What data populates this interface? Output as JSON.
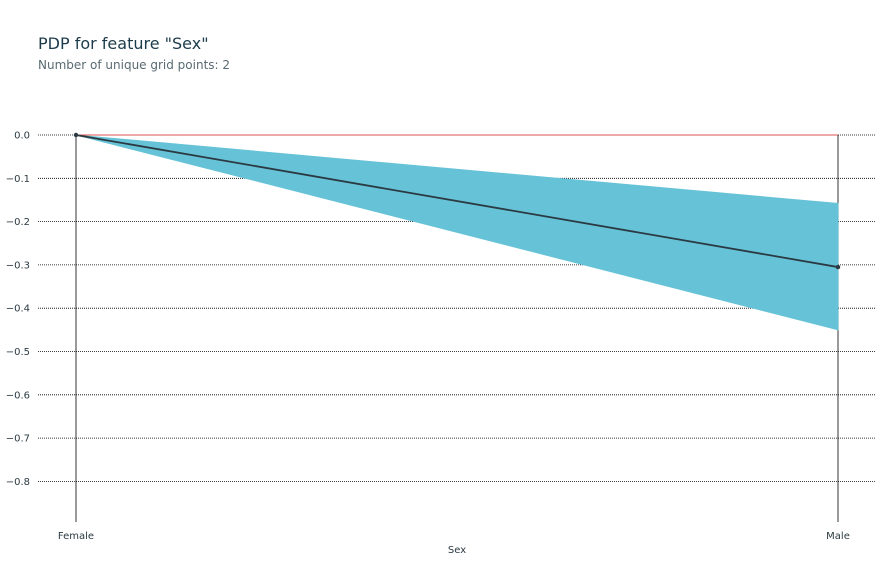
{
  "chart_data": {
    "type": "line",
    "title": "PDP for feature \"Sex\"",
    "subtitle": "Number of unique grid points: 2",
    "xlabel": "Sex",
    "ylabel": "",
    "categories": [
      "Female",
      "Male"
    ],
    "series": [
      {
        "values": [
          0.0,
          -0.305
        ],
        "lower": [
          0.0,
          -0.45
        ],
        "upper": [
          0.0,
          -0.158
        ]
      }
    ],
    "baseline": 0.0,
    "ylim": [
      -0.9,
      0.0
    ],
    "yticks": [
      0.0,
      -0.1,
      -0.2,
      -0.3,
      -0.4,
      -0.5,
      -0.6,
      -0.7,
      -0.8
    ],
    "ytick_labels": [
      "0.0",
      "−0.1",
      "−0.2",
      "−0.3",
      "−0.4",
      "−0.5",
      "−0.6",
      "−0.7",
      "−0.8"
    ],
    "grid": true,
    "colors": {
      "band": "#66c2d7",
      "line": "#2b3a42",
      "baseline": "#d9534f",
      "grid": "#000000",
      "text": "#1c3b4a"
    }
  }
}
